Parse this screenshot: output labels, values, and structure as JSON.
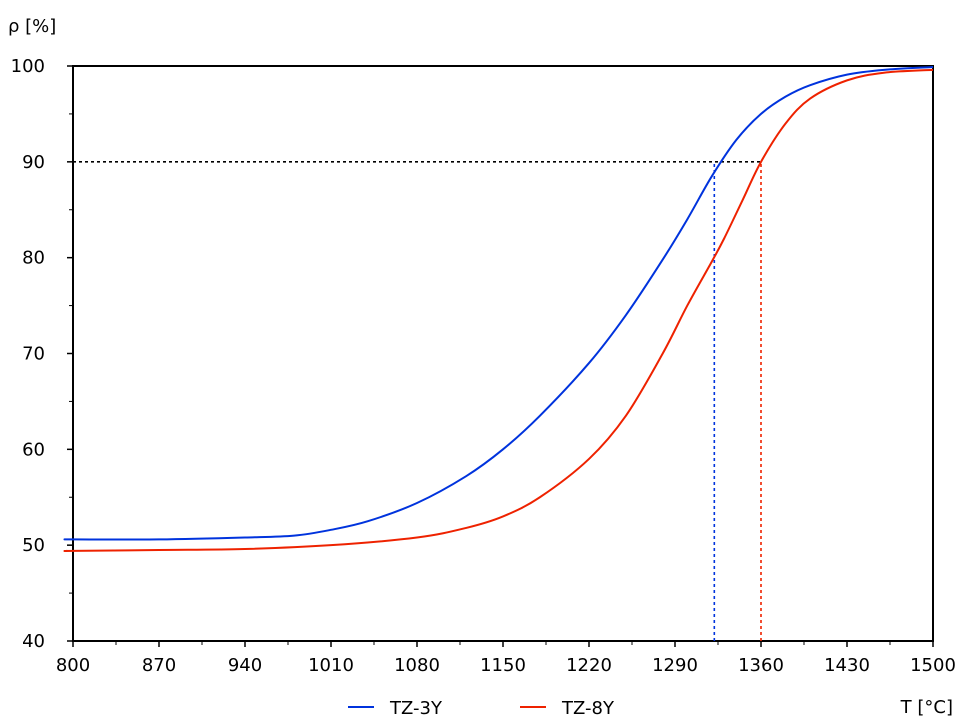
{
  "chart_data": {
    "type": "line",
    "ylabel": "ρ [%]",
    "xlabel": "T [°C]",
    "xlim": [
      800,
      1500
    ],
    "ylim": [
      40,
      100
    ],
    "x_ticks": [
      800,
      870,
      940,
      1010,
      1080,
      1150,
      1220,
      1290,
      1360,
      1430,
      1500
    ],
    "y_ticks": [
      40,
      50,
      60,
      70,
      80,
      90,
      100
    ],
    "grid": false,
    "legend_position": "bottom-center",
    "series": [
      {
        "name": "TZ-3Y",
        "color": "#0033dd",
        "x": [
          795,
          800,
          870,
          940,
          980,
          1010,
          1040,
          1080,
          1120,
          1150,
          1180,
          1220,
          1250,
          1280,
          1300,
          1320,
          1340,
          1360,
          1380,
          1400,
          1430,
          1460,
          1500
        ],
        "y": [
          50.6,
          50.6,
          50.6,
          50.8,
          51.0,
          51.6,
          52.5,
          54.4,
          57.2,
          60.0,
          63.5,
          69.0,
          74.0,
          79.8,
          84.0,
          88.5,
          92.3,
          95.0,
          96.8,
          98.0,
          99.1,
          99.6,
          99.9
        ]
      },
      {
        "name": "TZ-8Y",
        "color": "#ee2200",
        "x": [
          795,
          800,
          870,
          940,
          1010,
          1080,
          1120,
          1150,
          1180,
          1220,
          1250,
          1280,
          1300,
          1320,
          1330,
          1345,
          1360,
          1380,
          1400,
          1430,
          1460,
          1500
        ],
        "y": [
          49.4,
          49.4,
          49.5,
          49.6,
          50.0,
          50.8,
          51.8,
          53.0,
          55.0,
          59.0,
          63.5,
          70.0,
          75.0,
          79.6,
          82.0,
          86.0,
          90.0,
          94.0,
          96.6,
          98.5,
          99.3,
          99.6
        ]
      }
    ],
    "reference_lines": [
      {
        "type": "horizontal",
        "y": 90,
        "x_from": 800,
        "x_to": 1360,
        "color": "#000000",
        "style": "dotted"
      },
      {
        "type": "vertical",
        "x": 1322,
        "y_from": 40,
        "y_to": 90,
        "color": "#0033dd",
        "style": "dotted"
      },
      {
        "type": "vertical",
        "x": 1360,
        "y_from": 40,
        "y_to": 90,
        "color": "#ee2200",
        "style": "dotted"
      }
    ]
  }
}
